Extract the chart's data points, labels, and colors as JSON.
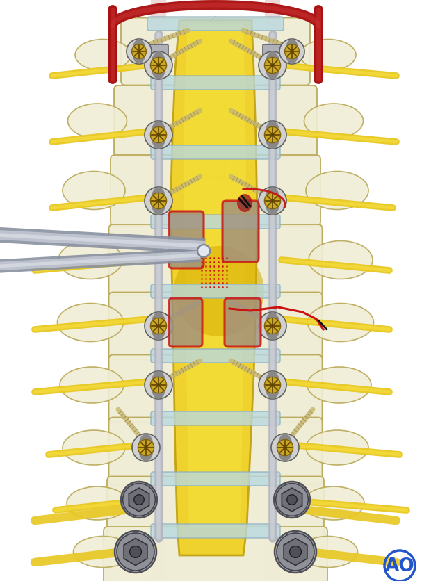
{
  "bg_color": "#ffffff",
  "ao_text": "AO",
  "ao_color": "#2255cc",
  "figsize": [
    6.2,
    8.37
  ],
  "dpi": 100,
  "bone_color": "#f0edd5",
  "bone_color2": "#e8e4c0",
  "bone_outline": "#b8a855",
  "spinal_cord_color": "#f0d820",
  "red_vessel_color": "#aa1111",
  "screw_yellow": "#b8a030",
  "screw_gray": "#909090",
  "disc_color": "#b8d8e0",
  "nerve_yellow": "#e8c820",
  "pink_band": "#d09090",
  "instrument_gray": "#c8ccd4",
  "cut_red": "#cc1111"
}
